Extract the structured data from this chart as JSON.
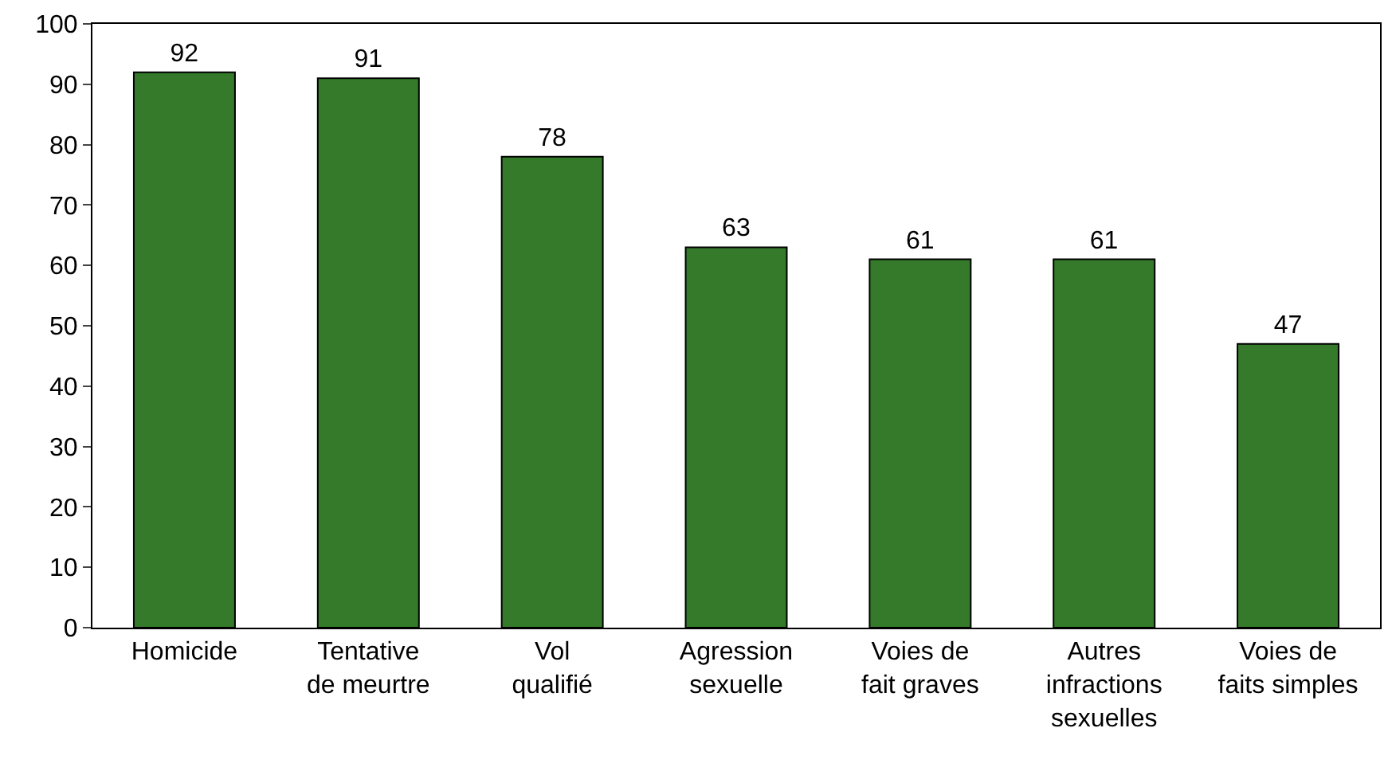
{
  "chart_data": {
    "type": "bar",
    "categories": [
      "Homicide",
      "Tentative\nde meurtre",
      "Vol\nqualifié",
      "Agression\nsexuelle",
      "Voies de\nfait graves",
      "Autres\ninfractions\nsexuelles",
      "Voies de\nfaits simples"
    ],
    "values": [
      92,
      91,
      78,
      63,
      61,
      61,
      47
    ],
    "color": "#347a2a",
    "ylim": [
      0,
      100
    ],
    "yticks": [
      0,
      10,
      20,
      30,
      40,
      50,
      60,
      70,
      80,
      90,
      100
    ],
    "data_labels": true
  }
}
